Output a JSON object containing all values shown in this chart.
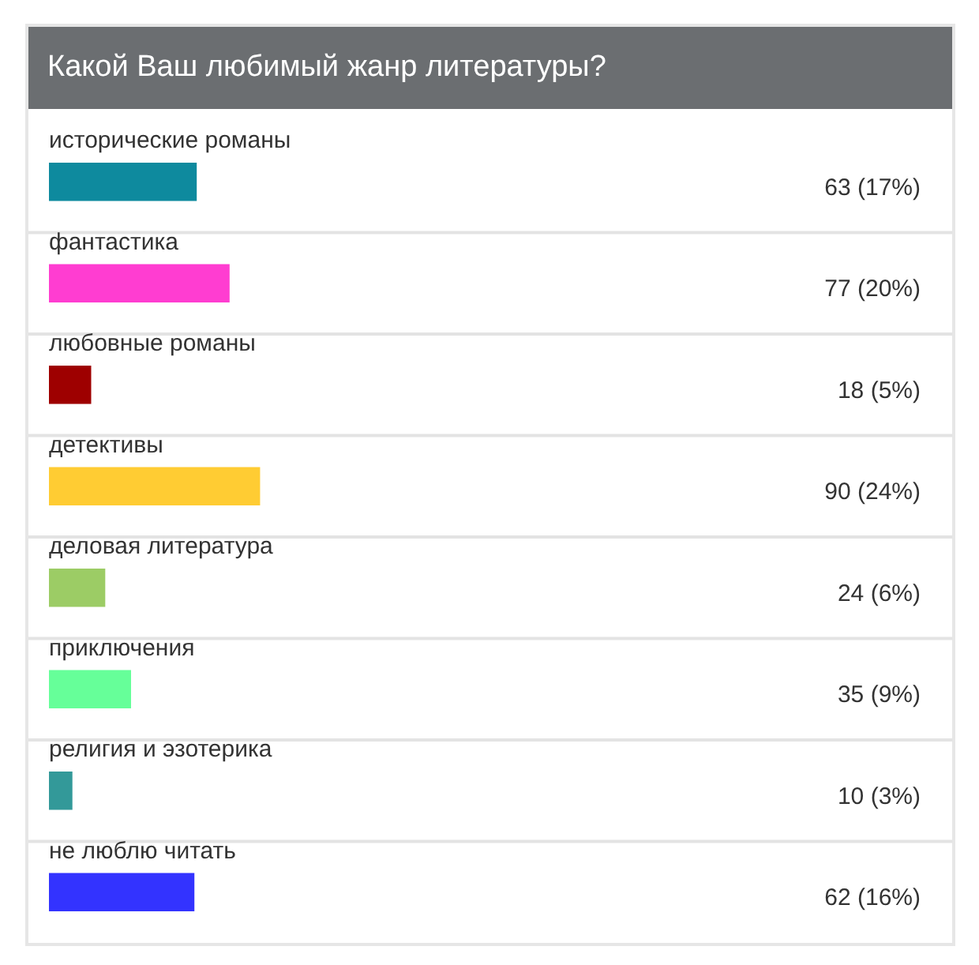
{
  "chart_data": {
    "type": "bar",
    "orientation": "horizontal",
    "title": "Какой Ваш любимый жанр литературы?",
    "categories": [
      "исторические романы",
      "фантастика",
      "любовные романы",
      "детективы",
      "деловая литература",
      "приключения",
      "религия и эзотерика",
      "не люблю читать"
    ],
    "values": [
      63,
      77,
      18,
      90,
      24,
      35,
      10,
      62
    ],
    "colors": [
      "#0e8a9e",
      "#ff3dd1",
      "#9e0000",
      "#ffcc33",
      "#9ccc65",
      "#66ff99",
      "#339999",
      "#3333ff"
    ],
    "value_labels": [
      "63 (17%)",
      "77 (20%)",
      "18 (5%)",
      "90 (24%)",
      "24 (6%)",
      "35 (9%)",
      "10 (3%)",
      "62 (16%)"
    ],
    "xlim": [
      0,
      385
    ]
  }
}
